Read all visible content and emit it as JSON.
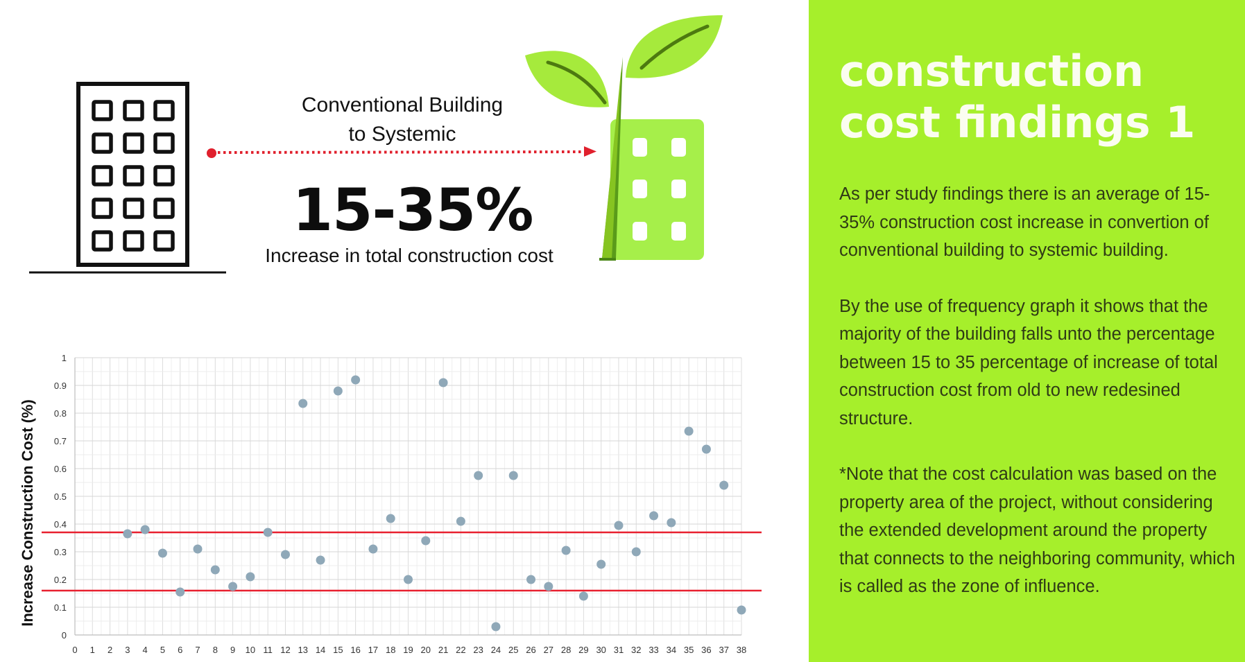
{
  "infographic": {
    "conversion_label": [
      "Conventional Building",
      "to Systemic"
    ],
    "range_value": "15-35%",
    "range_caption": "Increase in total construction cost"
  },
  "panel": {
    "title": [
      "construction",
      "cost findings 1"
    ],
    "paragraph_1": "As per study findings there is an average of 15- 35% construction cost increase in convertion of conventional building to systemic building.",
    "paragraph_2": "By the use of frequency graph it shows that the majority of the building falls unto the percentage between 15 to 35 percentage of increase of total construction cost from old to new redesined structure.",
    "paragraph_3": "*Note that the cost calculation was based on the property area of the project, without considering the extended development around the property that connects to the neighboring community, which is called as the zone of influence.",
    "accent_color": "#a6ef2b"
  },
  "chart_data": {
    "type": "scatter",
    "ylabel": "Increase Construction Cost (%)",
    "xlabel": "",
    "xlim": [
      0,
      38
    ],
    "ylim": [
      0,
      1
    ],
    "x_ticks": [
      0,
      1,
      2,
      3,
      4,
      5,
      6,
      7,
      8,
      9,
      10,
      11,
      12,
      13,
      14,
      15,
      16,
      17,
      18,
      19,
      20,
      21,
      22,
      23,
      24,
      25,
      26,
      27,
      28,
      29,
      30,
      31,
      32,
      33,
      34,
      35,
      36,
      37,
      38
    ],
    "y_ticks": [
      0,
      0.1,
      0.2,
      0.3,
      0.4,
      0.5,
      0.6,
      0.7,
      0.8,
      0.9,
      1
    ],
    "y_tick_labels": [
      "0",
      "0.1",
      "0.2",
      "0.3",
      "0.4",
      "0.5",
      "0.6",
      "0.7",
      "0.8",
      "0.9",
      "1"
    ],
    "grid": true,
    "point_color": "#8fa8b8",
    "reference_lines": {
      "values": [
        0.16,
        0.37
      ],
      "color": "#e8202f"
    },
    "series": [
      {
        "x": [
          3,
          4,
          5,
          6,
          7,
          8,
          9,
          10,
          11,
          12,
          13,
          14,
          15,
          16,
          17,
          18,
          19,
          20,
          21,
          22,
          23,
          24,
          25,
          26,
          27,
          28,
          29,
          30,
          31,
          32,
          33,
          34,
          35,
          36,
          37,
          38
        ],
        "y": [
          0.365,
          0.38,
          0.295,
          0.155,
          0.31,
          0.235,
          0.175,
          0.21,
          0.37,
          0.29,
          0.835,
          0.27,
          0.88,
          0.92,
          0.31,
          0.42,
          0.2,
          0.34,
          0.91,
          0.41,
          0.575,
          0.03,
          0.575,
          0.2,
          0.175,
          0.305,
          0.14,
          0.255,
          0.395,
          0.3,
          0.43,
          0.405,
          0.735,
          0.67,
          0.54,
          0.09
        ]
      }
    ]
  }
}
